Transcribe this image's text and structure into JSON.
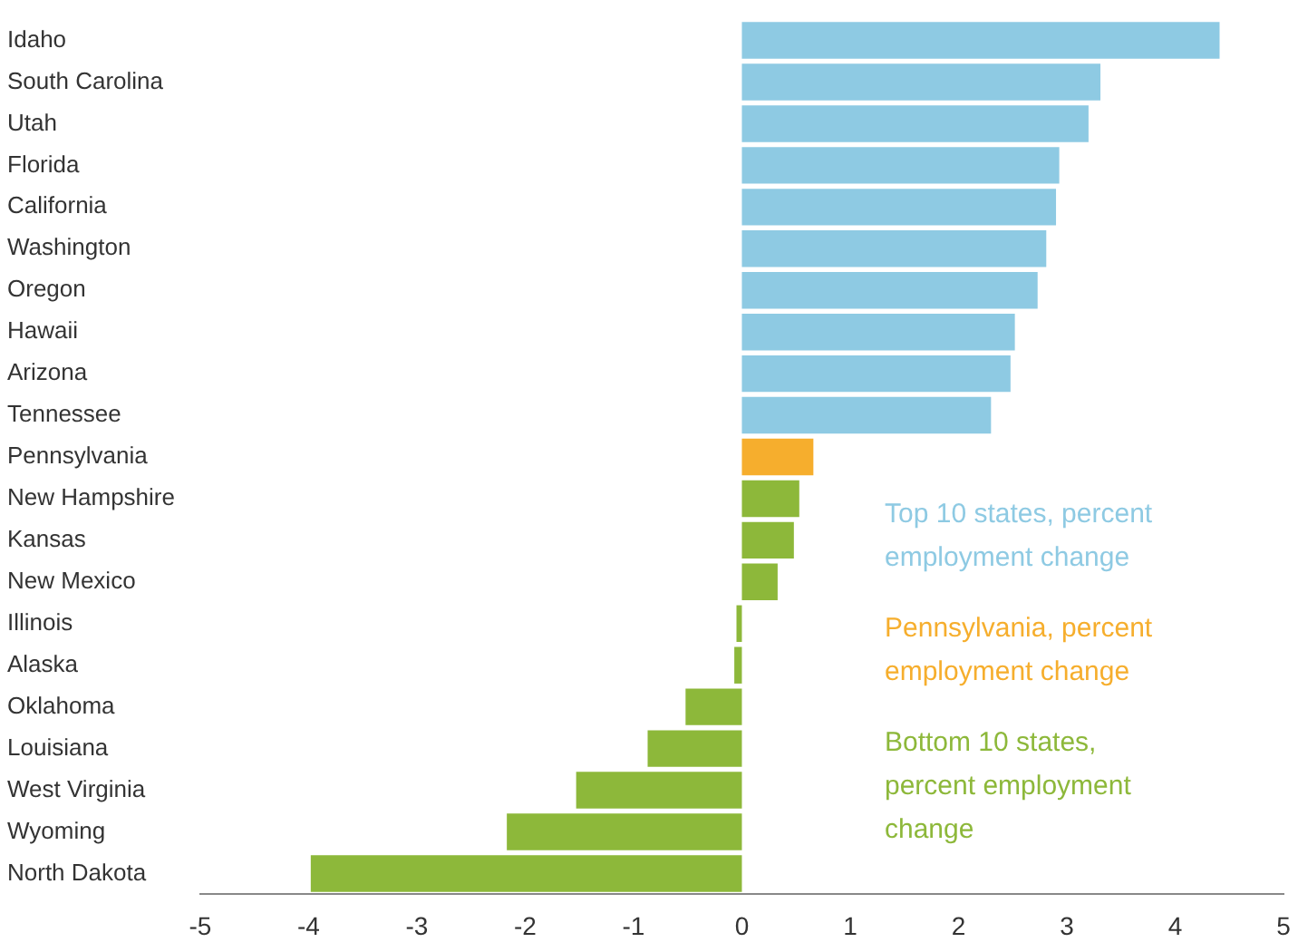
{
  "chart_data": {
    "type": "bar",
    "orientation": "horizontal",
    "stacked": true,
    "grid": false,
    "legend": "right",
    "categories": [
      "Idaho",
      "South Carolina",
      "Utah",
      "Florida",
      "California",
      "Washington",
      "Oregon",
      "Hawaii",
      "Arizona",
      "Tennessee",
      "Pennsylvania",
      "New Hampshire",
      "Kansas",
      "New Mexico",
      "Illinois",
      "Alaska",
      "Oklahoma",
      "Louisiana",
      "West Virginia",
      "Wyoming",
      "North Dakota"
    ],
    "xlim": [
      -5,
      5
    ],
    "xticks": [
      -5,
      -4,
      -3,
      -2,
      -1,
      0,
      1,
      2,
      3,
      4,
      5
    ],
    "series": [
      {
        "name": "Top 10 states, percent employment change",
        "color": "#8ecae3",
        "values": [
          4.41,
          3.31,
          3.2,
          2.93,
          2.9,
          2.81,
          2.73,
          2.52,
          2.48,
          2.3,
          null,
          null,
          null,
          null,
          null,
          null,
          null,
          null,
          null,
          null,
          null
        ]
      },
      {
        "name": "Pennsylvania, percent employment change",
        "color": "#f6ae2d",
        "values": [
          null,
          null,
          null,
          null,
          null,
          null,
          null,
          null,
          null,
          null,
          0.66,
          null,
          null,
          null,
          null,
          null,
          null,
          null,
          null,
          null,
          null
        ]
      },
      {
        "name": "Bottom 10 states, percent employment change",
        "color": "#8db83a",
        "values": [
          null,
          null,
          null,
          null,
          null,
          null,
          null,
          null,
          null,
          null,
          null,
          0.53,
          0.48,
          0.33,
          -0.05,
          -0.07,
          -0.52,
          -0.87,
          -1.53,
          -2.17,
          -3.98
        ]
      }
    ]
  }
}
